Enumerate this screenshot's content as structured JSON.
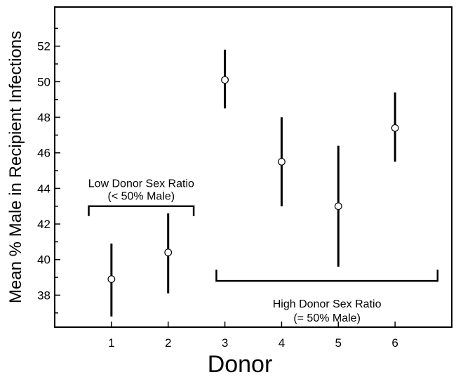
{
  "chart_data": {
    "type": "scatter",
    "title": "",
    "xlabel": "Donor",
    "ylabel": "Mean % Male in Recipient Infections",
    "xlim": [
      0,
      7
    ],
    "ylim": [
      36.2,
      54.2
    ],
    "x_ticks": [
      1,
      2,
      3,
      4,
      5,
      6
    ],
    "y_ticks": [
      38,
      40,
      42,
      44,
      46,
      48,
      50,
      52
    ],
    "grid": false,
    "points": [
      {
        "x": 1,
        "y": 38.9,
        "low": 36.8,
        "high": 40.9
      },
      {
        "x": 2,
        "y": 40.4,
        "low": 38.1,
        "high": 42.6
      },
      {
        "x": 3,
        "y": 50.1,
        "low": 48.5,
        "high": 51.8
      },
      {
        "x": 4,
        "y": 45.5,
        "low": 43.0,
        "high": 48.0
      },
      {
        "x": 5,
        "y": 43.0,
        "low": 39.6,
        "high": 46.4
      },
      {
        "x": 6,
        "y": 47.4,
        "low": 45.5,
        "high": 49.4
      }
    ],
    "groups": [
      {
        "label_line1": "Low Donor Sex Ratio",
        "label_line2": "(< 50% Male)",
        "x_from": 0.6,
        "x_to": 2.45,
        "y": 43.0,
        "label_position": "above",
        "tick_direction": "down"
      },
      {
        "label_line1": "High Donor Sex Ratio",
        "label_line2": "(= 50% Male)",
        "x_from": 2.85,
        "x_to": 6.75,
        "y": 38.8,
        "label_position": "below",
        "tick_direction": "up"
      }
    ]
  }
}
